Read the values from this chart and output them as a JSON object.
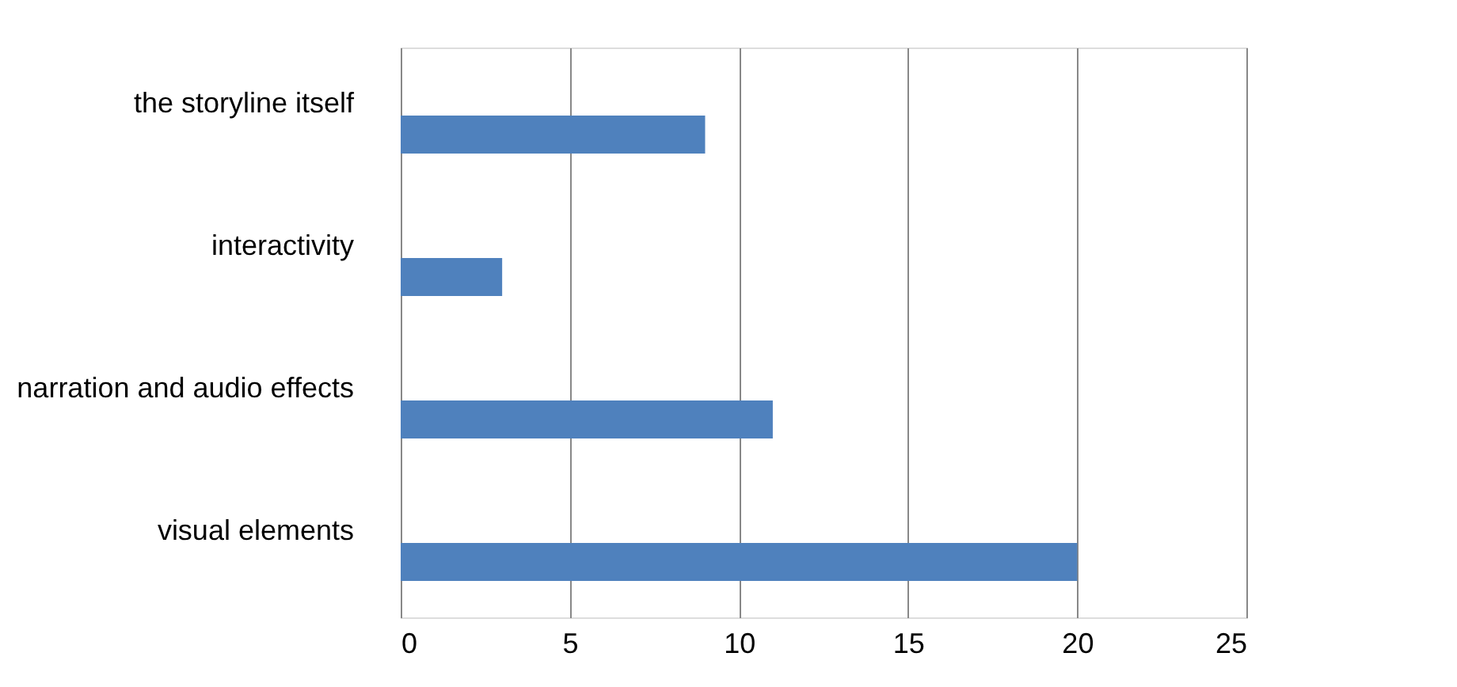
{
  "chart_data": {
    "type": "bar",
    "orientation": "horizontal",
    "categories": [
      "the storyline itself",
      "interactivity",
      "narration and audio effects",
      "visual elements"
    ],
    "series": [
      {
        "color": "#4f81bd",
        "values": [
          9,
          3,
          11,
          20
        ]
      }
    ],
    "xlim": [
      0,
      25
    ],
    "xticks": [
      0,
      5,
      10,
      15,
      20,
      25
    ],
    "grid": "x",
    "legend": false
  }
}
